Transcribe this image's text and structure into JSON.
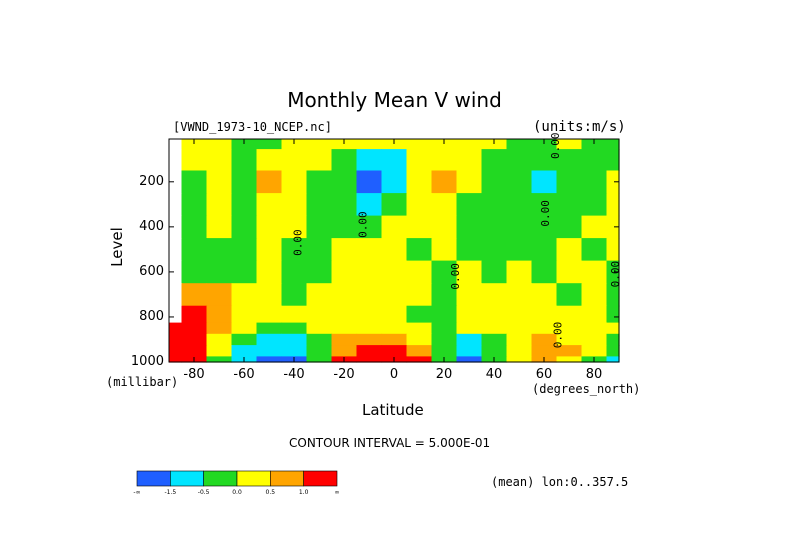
{
  "chart_data": {
    "type": "heatmap",
    "title": "Monthly Mean V wind",
    "subtitle_left": "[VWND_1973-10_NCEP.nc]",
    "subtitle_right": "(units:m/s)",
    "xlabel": "Latitude",
    "xunit": "(degrees_north)",
    "ylabel": "Level",
    "yunit": "(millibar)",
    "xlim": [
      -90,
      90
    ],
    "ylim": [
      1000,
      10
    ],
    "x_ticks": [
      -80,
      -60,
      -40,
      -20,
      0,
      20,
      40,
      60,
      80
    ],
    "x_tick_labels": [
      "-80",
      "-60",
      "-40",
      "-20",
      "0",
      "20",
      "40",
      "60",
      "80"
    ],
    "y_ticks": [
      200,
      400,
      600,
      800,
      1000
    ],
    "y_tick_labels": [
      "200",
      "400",
      "600",
      "800",
      "1000"
    ],
    "contour_interval_text": "CONTOUR INTERVAL = 5.000E-01",
    "mean_text": "(mean) lon:0..357.5",
    "contour_labels": [
      {
        "x": 66,
        "y": 40,
        "text": "0.00"
      },
      {
        "x": -37,
        "y": 470,
        "text": "0.00"
      },
      {
        "x": -11,
        "y": 390,
        "text": "0.00"
      },
      {
        "x": 62,
        "y": 340,
        "text": "0.00"
      },
      {
        "x": 90,
        "y": 610,
        "text": "0.00"
      },
      {
        "x": 26,
        "y": 620,
        "text": "0.00"
      },
      {
        "x": 67,
        "y": 880,
        "text": "0.00"
      }
    ],
    "colorbar": {
      "boundary_labels": [
        "-∞",
        "-1.5",
        "-0.5",
        "0.0",
        "0.5",
        "1.0",
        "∞"
      ],
      "colors": [
        "#1f5fff",
        "#00e5ff",
        "#22d922",
        "#ffff00",
        "#ffa500",
        "#ff0000"
      ],
      "missing_color": "#ffffff"
    },
    "value_classes": {
      "1": "below -1.5",
      "2": "-1.5 to -0.5",
      "3": "-0.5 to 0.0",
      "4": "0.0 to 0.5",
      "5": "0.5 to 1.0",
      "6": "above 1.0"
    },
    "grid_lats": [
      -90,
      -80,
      -70,
      -60,
      -50,
      -40,
      -30,
      -20,
      -10,
      0,
      10,
      20,
      30,
      40,
      50,
      60,
      70,
      80,
      90
    ],
    "grid_levels": [
      10,
      100,
      200,
      300,
      400,
      500,
      600,
      700,
      800,
      850,
      900,
      950,
      1000
    ],
    "field_classes": [
      [
        0,
        4,
        4,
        3,
        3,
        4,
        4,
        4,
        4,
        4,
        4,
        4,
        4,
        4,
        3,
        3,
        4,
        3,
        3
      ],
      [
        0,
        4,
        4,
        3,
        4,
        4,
        4,
        3,
        2,
        2,
        4,
        4,
        4,
        3,
        3,
        3,
        3,
        3,
        3
      ],
      [
        0,
        3,
        4,
        3,
        5,
        4,
        3,
        3,
        1,
        2,
        4,
        5,
        4,
        3,
        3,
        2,
        3,
        3,
        4
      ],
      [
        0,
        3,
        4,
        3,
        4,
        4,
        3,
        3,
        2,
        3,
        4,
        4,
        3,
        3,
        3,
        3,
        3,
        3,
        4
      ],
      [
        0,
        3,
        4,
        3,
        4,
        4,
        3,
        3,
        3,
        4,
        4,
        4,
        3,
        3,
        3,
        3,
        3,
        4,
        4
      ],
      [
        0,
        3,
        3,
        3,
        4,
        3,
        3,
        4,
        4,
        4,
        3,
        4,
        3,
        3,
        3,
        3,
        4,
        3,
        4
      ],
      [
        0,
        3,
        3,
        3,
        4,
        3,
        3,
        4,
        4,
        4,
        4,
        3,
        4,
        3,
        4,
        3,
        4,
        4,
        3
      ],
      [
        0,
        5,
        5,
        4,
        4,
        3,
        4,
        4,
        4,
        4,
        4,
        3,
        4,
        4,
        4,
        4,
        3,
        4,
        3
      ],
      [
        0,
        6,
        5,
        4,
        4,
        4,
        4,
        4,
        4,
        4,
        3,
        3,
        4,
        4,
        4,
        4,
        4,
        4,
        3
      ],
      [
        6,
        6,
        5,
        4,
        3,
        3,
        4,
        4,
        4,
        4,
        4,
        3,
        4,
        4,
        4,
        4,
        4,
        4,
        4
      ],
      [
        6,
        6,
        4,
        3,
        2,
        2,
        3,
        5,
        5,
        5,
        4,
        3,
        2,
        3,
        4,
        5,
        4,
        4,
        3
      ],
      [
        6,
        6,
        4,
        2,
        2,
        2,
        3,
        5,
        6,
        6,
        5,
        3,
        2,
        3,
        4,
        5,
        5,
        4,
        3
      ],
      [
        6,
        6,
        3,
        2,
        1,
        1,
        3,
        6,
        6,
        6,
        6,
        3,
        1,
        3,
        4,
        5,
        4,
        3,
        2
      ]
    ]
  }
}
